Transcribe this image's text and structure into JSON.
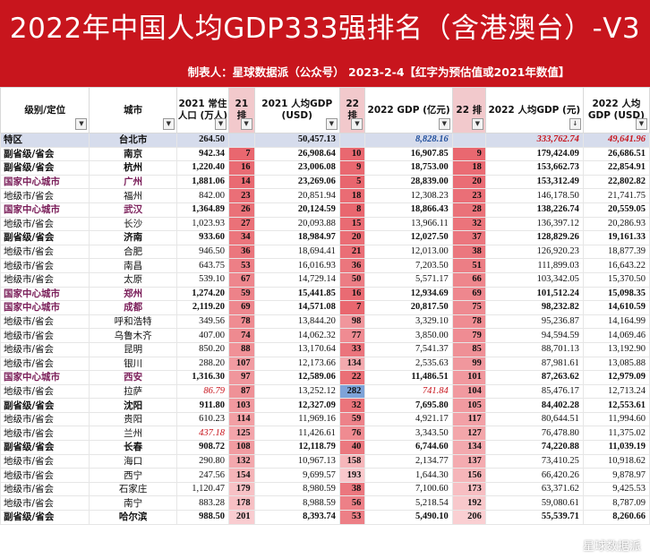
{
  "title": "2022年中国人均GDP333强排名（含港澳台）-V3",
  "subtitle": "制表人：星球数据派（公众号）  2023-2-4【红字为预估值或2021年数值】",
  "headers": [
    "级别/定位",
    "城市",
    "2021 常住人口 (万人)",
    "21 排",
    "2021 人均GDP (USD)",
    "22 排",
    "2022 GDP (亿元)",
    "22 排",
    "2022 人均GDP (元)",
    "2022 人均GDP (USD)"
  ],
  "rows": [
    [
      "特区",
      "台北市",
      "264.50",
      "",
      "50,457.13",
      "",
      "8,828.16",
      "",
      "333,762.74",
      "49,641.96"
    ],
    [
      "副省级/省会",
      "南京",
      "942.34",
      "7",
      "26,908.64",
      "10",
      "16,907.85",
      "9",
      "179,424.09",
      "26,686.51"
    ],
    [
      "副省级/省会",
      "杭州",
      "1,220.40",
      "16",
      "23,006.08",
      "9",
      "18,753.00",
      "18",
      "153,662.73",
      "22,854.91"
    ],
    [
      "国家中心城市",
      "广州",
      "1,881.06",
      "14",
      "23,269.06",
      "5",
      "28,839.00",
      "20",
      "153,312.49",
      "22,802.82"
    ],
    [
      "地级市/省会",
      "福州",
      "842.00",
      "23",
      "20,851.94",
      "18",
      "12,308.23",
      "23",
      "146,178.50",
      "21,741.75"
    ],
    [
      "国家中心城市",
      "武汉",
      "1,364.89",
      "26",
      "20,124.59",
      "8",
      "18,866.43",
      "28",
      "138,226.74",
      "20,559.05"
    ],
    [
      "地级市/省会",
      "长沙",
      "1,023.93",
      "27",
      "20,093.88",
      "15",
      "13,966.11",
      "32",
      "136,397.12",
      "20,286.93"
    ],
    [
      "副省级/省会",
      "济南",
      "933.60",
      "34",
      "18,984.97",
      "20",
      "12,027.50",
      "37",
      "128,829.26",
      "19,161.33"
    ],
    [
      "地级市/省会",
      "合肥",
      "946.50",
      "36",
      "18,694.41",
      "21",
      "12,013.00",
      "38",
      "126,920.23",
      "18,877.39"
    ],
    [
      "地级市/省会",
      "南昌",
      "643.75",
      "53",
      "16,016.93",
      "36",
      "7,203.50",
      "51",
      "111,899.03",
      "16,643.22"
    ],
    [
      "地级市/省会",
      "太原",
      "539.10",
      "67",
      "14,729.14",
      "50",
      "5,571.17",
      "66",
      "103,342.05",
      "15,370.50"
    ],
    [
      "国家中心城市",
      "郑州",
      "1,274.20",
      "59",
      "15,441.85",
      "16",
      "12,934.69",
      "69",
      "101,512.24",
      "15,098.35"
    ],
    [
      "国家中心城市",
      "成都",
      "2,119.20",
      "69",
      "14,571.08",
      "7",
      "20,817.50",
      "75",
      "98,232.82",
      "14,610.59"
    ],
    [
      "地级市/省会",
      "呼和浩特",
      "349.56",
      "78",
      "13,844.20",
      "98",
      "3,329.10",
      "78",
      "95,236.87",
      "14,164.99"
    ],
    [
      "地级市/省会",
      "乌鲁木齐",
      "407.00",
      "74",
      "14,062.32",
      "77",
      "3,850.00",
      "79",
      "94,594.59",
      "14,069.46"
    ],
    [
      "地级市/省会",
      "昆明",
      "850.20",
      "88",
      "13,170.64",
      "33",
      "7,541.37",
      "85",
      "88,701.13",
      "13,192.90"
    ],
    [
      "地级市/省会",
      "银川",
      "288.20",
      "107",
      "12,173.66",
      "134",
      "2,535.63",
      "99",
      "87,981.61",
      "13,085.88"
    ],
    [
      "国家中心城市",
      "西安",
      "1,316.30",
      "97",
      "12,589.06",
      "22",
      "11,486.51",
      "101",
      "87,263.62",
      "12,979.09"
    ],
    [
      "地级市/省会",
      "拉萨",
      "86.79",
      "87",
      "13,252.12",
      "282",
      "741.84",
      "104",
      "85,476.17",
      "12,713.24"
    ],
    [
      "副省级/省会",
      "沈阳",
      "911.80",
      "103",
      "12,327.09",
      "32",
      "7,695.80",
      "105",
      "84,402.28",
      "12,553.61"
    ],
    [
      "地级市/省会",
      "贵阳",
      "610.23",
      "114",
      "11,969.16",
      "59",
      "4,921.17",
      "117",
      "80,644.51",
      "11,994.60"
    ],
    [
      "地级市/省会",
      "兰州",
      "437.18",
      "125",
      "11,426.61",
      "76",
      "3,343.50",
      "127",
      "76,478.80",
      "11,375.02"
    ],
    [
      "副省级/省会",
      "长春",
      "908.72",
      "108",
      "12,118.79",
      "40",
      "6,744.60",
      "134",
      "74,220.88",
      "11,039.19"
    ],
    [
      "地级市/省会",
      "海口",
      "290.80",
      "132",
      "10,967.13",
      "158",
      "2,134.77",
      "137",
      "73,410.25",
      "10,918.62"
    ],
    [
      "地级市/省会",
      "西宁",
      "247.56",
      "154",
      "9,699.57",
      "193",
      "1,644.30",
      "156",
      "66,420.26",
      "9,878.97"
    ],
    [
      "地级市/省会",
      "石家庄",
      "1,120.47",
      "179",
      "8,980.59",
      "38",
      "7,100.60",
      "173",
      "63,371.62",
      "9,425.53"
    ],
    [
      "地级市/省会",
      "南宁",
      "883.28",
      "178",
      "8,988.59",
      "56",
      "5,218.54",
      "192",
      "59,080.61",
      "8,787.09"
    ],
    [
      "副省级/省会",
      "哈尔滨",
      "988.50",
      "201",
      "8,393.74",
      "53",
      "5,490.10",
      "206",
      "55,539.71",
      "8,260.66"
    ]
  ],
  "watermark": "星球数据派",
  "colors": {
    "title_bg": "#c8151d",
    "rank_red": "#e8636b",
    "rank_blue": "#7ea3d8",
    "purple": "#7b1f5a",
    "special_bg": "#d6dcec",
    "estimate": "#c8151d"
  }
}
